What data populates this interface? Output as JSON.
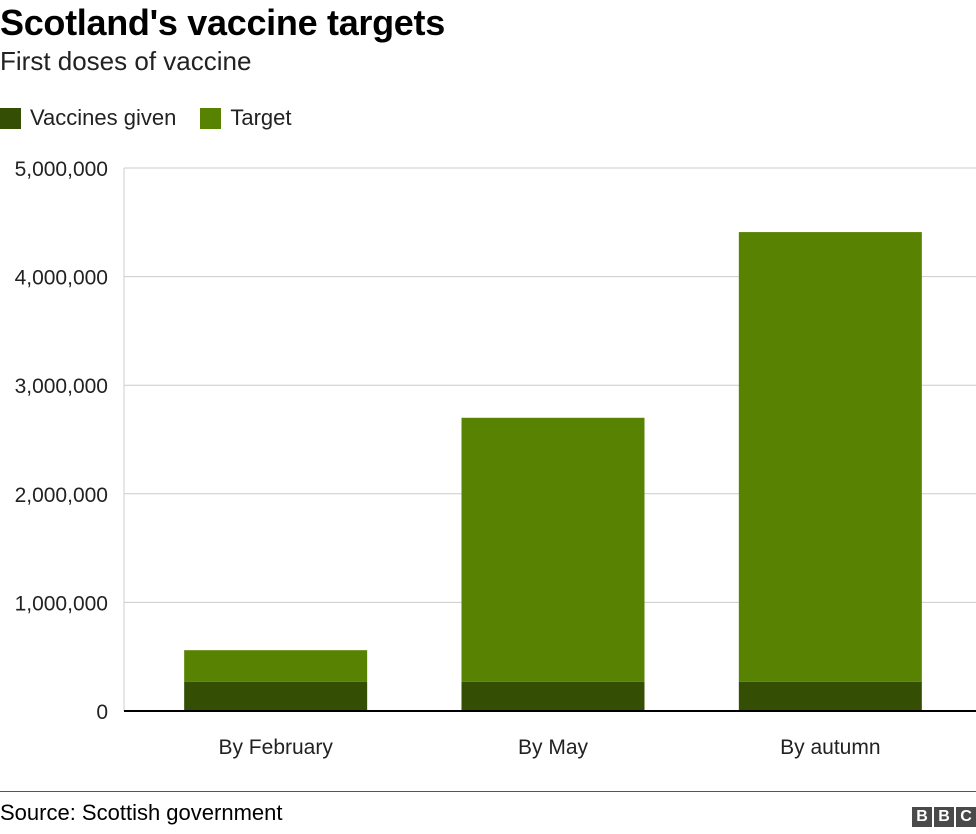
{
  "title": "Scotland's vaccine targets",
  "subtitle": "First doses of vaccine",
  "source": "Source: Scottish government",
  "logo_text": "BBC",
  "legend": [
    {
      "label": "Vaccines given",
      "color": "#344f04"
    },
    {
      "label": "Target",
      "color": "#588302"
    }
  ],
  "colors": {
    "given": "#344f04",
    "target": "#588302",
    "grid": "#cccccc",
    "axis": "#000000"
  },
  "chart_data": {
    "type": "bar",
    "stacked": true,
    "categories": [
      "By February",
      "By May",
      "By autumn"
    ],
    "series": [
      {
        "name": "Vaccines given",
        "values": [
          270000,
          270000,
          270000
        ]
      },
      {
        "name": "Target",
        "values": [
          290000,
          2430000,
          4140000
        ]
      }
    ],
    "totals": [
      560000,
      2700000,
      4410000
    ],
    "ylim": [
      0,
      5000000
    ],
    "yticks": [
      0,
      1000000,
      2000000,
      3000000,
      4000000,
      5000000
    ],
    "ytick_labels": [
      "0",
      "1,000,000",
      "2,000,000",
      "3,000,000",
      "4,000,000",
      "5,000,000"
    ],
    "grid": true,
    "legend_position": "top-left"
  }
}
